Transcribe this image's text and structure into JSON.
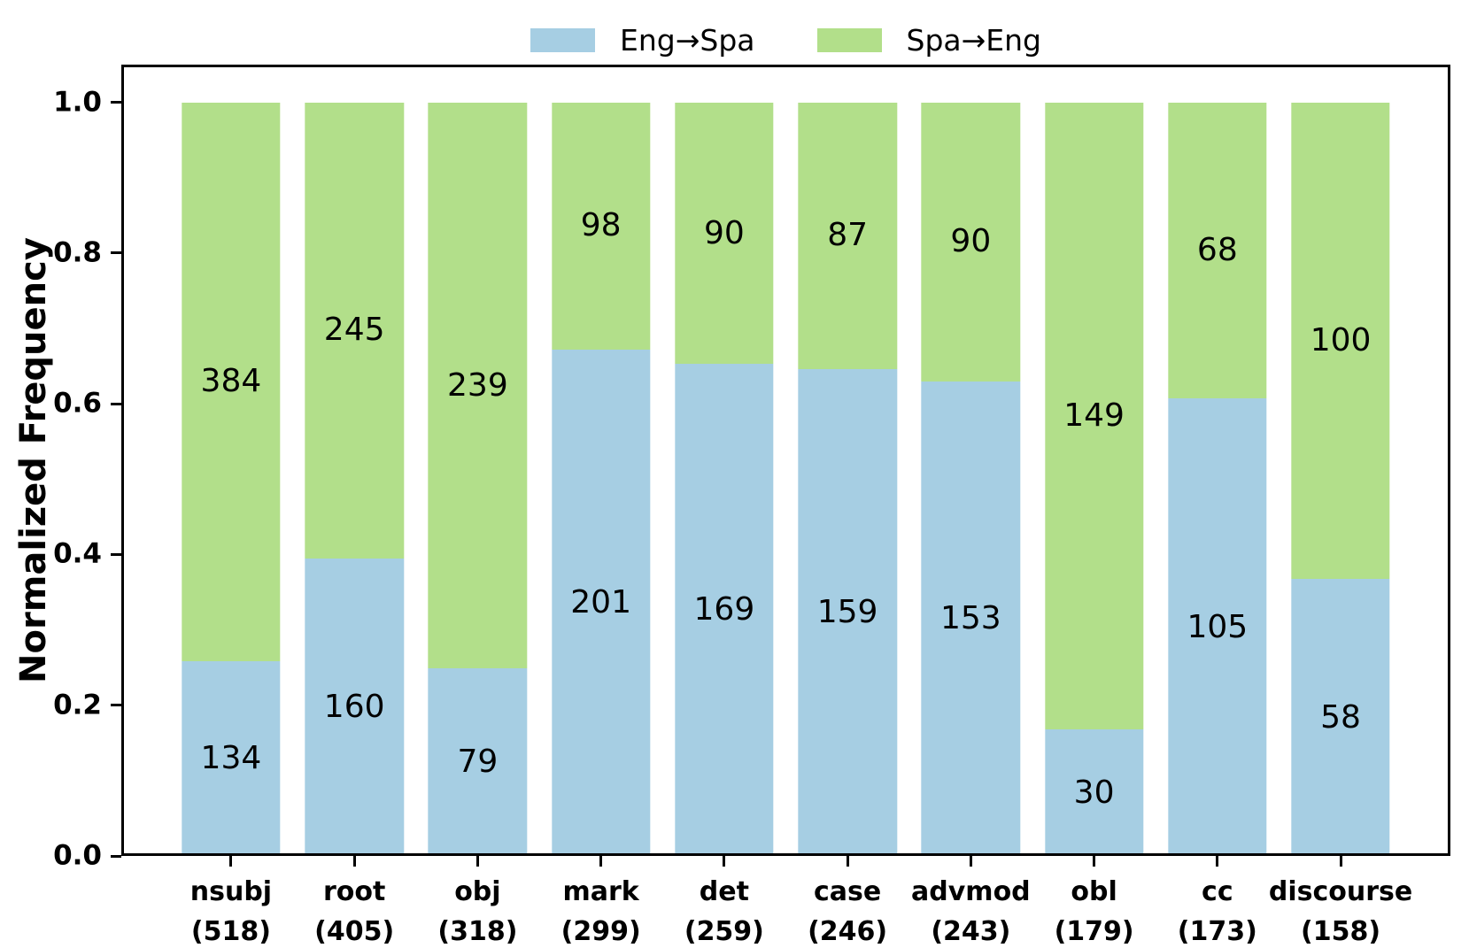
{
  "figure": {
    "background": "#ffffff",
    "axis_color": "#000000"
  },
  "legend": {
    "items": [
      {
        "label": "Eng→Spa",
        "color": "#a6cee3"
      },
      {
        "label": "Spa→Eng",
        "color": "#b2df8a"
      }
    ]
  },
  "chart_data": {
    "type": "bar",
    "stacked": true,
    "normalized": true,
    "title": "",
    "xlabel": "",
    "ylabel": "Normalized Frequency",
    "categories": [
      "nsubj",
      "root",
      "obj",
      "mark",
      "det",
      "case",
      "advmod",
      "obl",
      "cc",
      "discourse"
    ],
    "category_totals": [
      518,
      405,
      318,
      299,
      259,
      246,
      243,
      179,
      173,
      158
    ],
    "x_tick_labels": [
      "nsubj\n(518)",
      "root\n(405)",
      "obj\n(318)",
      "mark\n(299)",
      "det\n(259)",
      "case\n(246)",
      "advmod\n(243)",
      "obl\n(179)",
      "cc\n(173)",
      "discourse\n(158)"
    ],
    "series": [
      {
        "name": "Eng→Spa",
        "color": "#a6cee3",
        "values": [
          134,
          160,
          79,
          201,
          169,
          159,
          153,
          30,
          105,
          58
        ]
      },
      {
        "name": "Spa→Eng",
        "color": "#b2df8a",
        "values": [
          384,
          245,
          239,
          98,
          90,
          87,
          90,
          149,
          68,
          100
        ]
      }
    ],
    "normalized_fractions_eng_spa": [
      0.259,
      0.395,
      0.248,
      0.672,
      0.652,
      0.646,
      0.63,
      0.168,
      0.607,
      0.367
    ],
    "yticks": [
      0.0,
      0.2,
      0.4,
      0.6,
      0.8,
      1.0
    ],
    "ylim": [
      0,
      1.05
    ],
    "bar_width": 0.8,
    "xlim": [
      -0.89,
      9.89
    ],
    "grid": false,
    "legend_position": "top-center",
    "value_labels": "center-of-segment"
  }
}
